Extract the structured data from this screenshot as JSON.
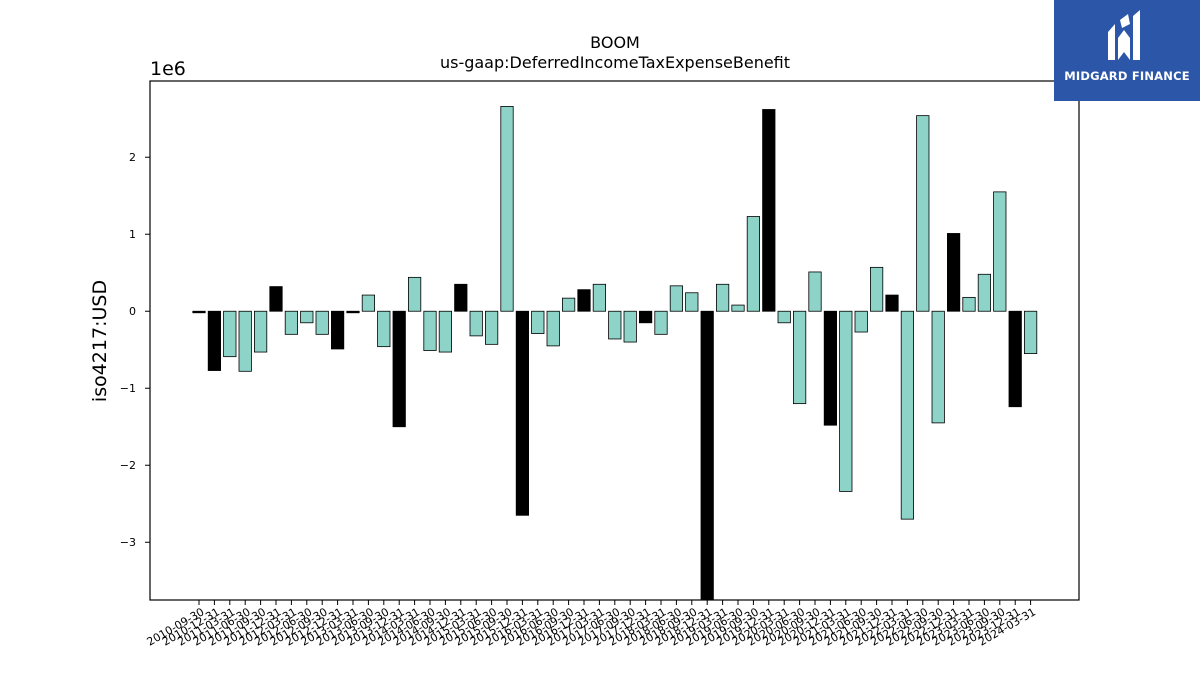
{
  "logo": {
    "text": "MIDGARD FINANCE"
  },
  "chart_data": {
    "type": "bar",
    "title": "BOOM",
    "subtitle": "us-gaap:DeferredIncomeTaxExpenseBenefit",
    "ylabel": "iso4217:USD",
    "xlabel": "",
    "y_multiplier_label": "1e6",
    "ylim": [
      -3.75,
      2.99
    ],
    "yticks": [
      -3,
      -2,
      -1,
      0,
      1,
      2
    ],
    "grid": false,
    "colors": {
      "a": "#8dd3c7",
      "b": "#000000"
    },
    "categories": [
      "2010-09-30",
      "2010-12-31",
      "2011-03-31",
      "2011-06-30",
      "2011-09-30",
      "2011-12-31",
      "2012-03-31",
      "2012-06-30",
      "2012-09-30",
      "2012-12-31",
      "2013-03-31",
      "2013-06-30",
      "2013-09-30",
      "2013-12-31",
      "2014-03-31",
      "2014-06-30",
      "2014-09-30",
      "2014-12-31",
      "2015-03-31",
      "2015-06-30",
      "2015-09-30",
      "2015-12-31",
      "2016-03-31",
      "2016-06-30",
      "2016-09-30",
      "2016-12-31",
      "2017-03-31",
      "2017-06-30",
      "2017-09-30",
      "2017-12-31",
      "2018-03-31",
      "2018-06-30",
      "2018-09-30",
      "2018-12-31",
      "2019-03-31",
      "2019-06-30",
      "2019-09-30",
      "2019-12-31",
      "2020-03-31",
      "2020-06-30",
      "2020-09-30",
      "2020-12-31",
      "2021-03-31",
      "2021-06-30",
      "2021-09-30",
      "2021-12-31",
      "2022-03-31",
      "2022-06-30",
      "2022-09-30",
      "2022-12-31",
      "2023-03-31",
      "2023-06-30",
      "2023-09-30",
      "2023-12-31",
      "2024-03-31"
    ],
    "values": [
      -0.02,
      -0.77,
      -0.59,
      -0.78,
      -0.53,
      0.32,
      -0.3,
      -0.15,
      -0.3,
      -0.49,
      -0.02,
      0.21,
      -0.46,
      -1.5,
      0.44,
      -0.51,
      -0.53,
      0.35,
      -0.32,
      -0.43,
      2.66,
      -2.65,
      -0.29,
      -0.45,
      0.17,
      0.28,
      0.35,
      -0.36,
      -0.4,
      -0.15,
      -0.3,
      0.33,
      0.24,
      -3.8,
      0.35,
      0.08,
      1.23,
      2.62,
      -0.15,
      -1.2,
      0.51,
      -1.48,
      -2.34,
      -0.27,
      0.57,
      0.21,
      -2.7,
      2.54,
      -1.45,
      1.01,
      0.18,
      0.48,
      1.55,
      -1.24,
      -0.55
    ],
    "bar_colors": [
      "b",
      "b",
      "a",
      "a",
      "a",
      "b",
      "a",
      "a",
      "a",
      "b",
      "b",
      "a",
      "a",
      "b",
      "a",
      "a",
      "a",
      "b",
      "a",
      "a",
      "a",
      "b",
      "a",
      "a",
      "a",
      "b",
      "a",
      "a",
      "a",
      "b",
      "a",
      "a",
      "a",
      "b",
      "a",
      "a",
      "a",
      "b",
      "a",
      "a",
      "a",
      "b",
      "a",
      "a",
      "a",
      "b",
      "a",
      "a",
      "a",
      "b",
      "a",
      "a",
      "a",
      "b",
      "a"
    ]
  }
}
